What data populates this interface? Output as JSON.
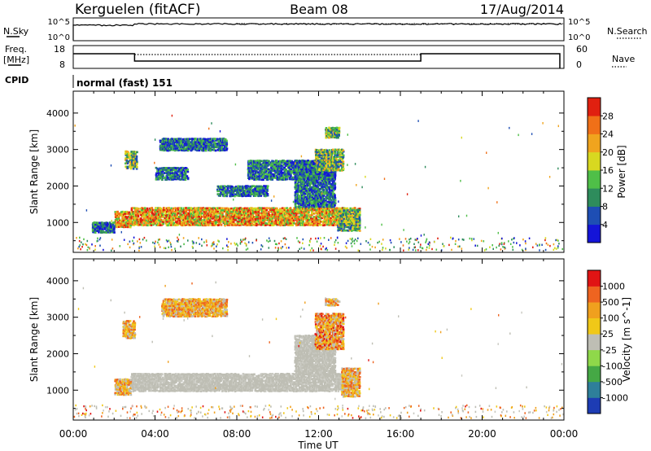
{
  "header": {
    "station": "Kerguelen (fitACF)",
    "beam": "Beam 08",
    "date": "17/Aug/2014"
  },
  "strip_labels": {
    "nsky": "N.Sky",
    "nsky_top": "10^5",
    "nsky_bottom": "10^0",
    "nsearch": "N.Search",
    "nsearch_top": "10^5",
    "nsearch_bottom": "10^0",
    "freq": "Freq.",
    "freq_unit": "[MHz]",
    "freq_top": "18",
    "freq_bottom": "8",
    "nave": "Nave",
    "nave_top": "60",
    "nave_bottom": "0",
    "cpid": "CPID",
    "cpid_value": "normal (fast) 151"
  },
  "chart_data": [
    {
      "type": "heatmap",
      "name": "power",
      "xlabel": "",
      "ylabel": "Slant Range [km]",
      "xlim": [
        0,
        24
      ],
      "ylim": [
        180,
        4600
      ],
      "yticks": [
        "1000",
        "2000",
        "3000",
        "4000"
      ],
      "colorbar": {
        "label": "Power [dB]",
        "ticks": [
          "4",
          "8",
          "12",
          "16",
          "20",
          "24",
          "28"
        ],
        "colors": [
          "#1414d8",
          "#1e4eb4",
          "#2e8c5c",
          "#4fbf48",
          "#d8d820",
          "#f0a41e",
          "#f07018",
          "#e02010"
        ]
      },
      "regions": [
        {
          "t": [
            2.0,
            2.8
          ],
          "r": [
            850,
            1300
          ],
          "level": "high"
        },
        {
          "t": [
            2.8,
            14.0
          ],
          "r": [
            900,
            1400
          ],
          "level": "high"
        },
        {
          "t": [
            12.9,
            14.0
          ],
          "r": [
            750,
            1350
          ],
          "level": "mid"
        },
        {
          "t": [
            2.5,
            3.1
          ],
          "r": [
            2450,
            2950
          ],
          "level": "mid"
        },
        {
          "t": [
            4.0,
            5.6
          ],
          "r": [
            2150,
            2500
          ],
          "level": "low"
        },
        {
          "t": [
            4.2,
            7.5
          ],
          "r": [
            2950,
            3300
          ],
          "level": "low"
        },
        {
          "t": [
            7.0,
            9.5
          ],
          "r": [
            1700,
            2000
          ],
          "level": "low"
        },
        {
          "t": [
            8.5,
            12.8
          ],
          "r": [
            2150,
            2700
          ],
          "level": "low"
        },
        {
          "t": [
            10.8,
            12.8
          ],
          "r": [
            1400,
            2700
          ],
          "level": "low"
        },
        {
          "t": [
            11.8,
            13.2
          ],
          "r": [
            2400,
            3000
          ],
          "level": "mid"
        },
        {
          "t": [
            12.3,
            13.0
          ],
          "r": [
            3300,
            3600
          ],
          "level": "mid"
        },
        {
          "t": [
            0.9,
            2.0
          ],
          "r": [
            700,
            1000
          ],
          "level": "low"
        }
      ]
    },
    {
      "type": "heatmap",
      "name": "velocity",
      "xlabel": "Time UT",
      "ylabel": "Slant Range [km]",
      "xlim": [
        0,
        24
      ],
      "ylim": [
        180,
        4600
      ],
      "xticks": [
        "00:00",
        "04:00",
        "08:00",
        "12:00",
        "16:00",
        "20:00",
        "00:00"
      ],
      "yticks": [
        "1000",
        "2000",
        "3000",
        "4000"
      ],
      "colorbar": {
        "label": "Velocity [m s^-1]",
        "ticks": [
          "1000",
          "500",
          "100",
          "25",
          "-25",
          "-100",
          "-500",
          "-1000"
        ],
        "colors": [
          "#1d3cb4",
          "#2e7f9a",
          "#45a845",
          "#8fd84a",
          "#bebeb4",
          "#f0c818",
          "#f0a01e",
          "#ee6420",
          "#e01414"
        ]
      },
      "regions": [
        {
          "t": [
            2.8,
            13.4
          ],
          "r": [
            950,
            1450
          ],
          "level": "ground"
        },
        {
          "t": [
            10.8,
            12.8
          ],
          "r": [
            1400,
            2500
          ],
          "level": "ground"
        },
        {
          "t": [
            2.0,
            2.8
          ],
          "r": [
            850,
            1300
          ],
          "level": "orange"
        },
        {
          "t": [
            13.1,
            14.0
          ],
          "r": [
            800,
            1600
          ],
          "level": "orange"
        },
        {
          "t": [
            2.4,
            3.0
          ],
          "r": [
            2400,
            2900
          ],
          "level": "orange"
        },
        {
          "t": [
            4.3,
            7.5
          ],
          "r": [
            3000,
            3500
          ],
          "level": "orange"
        },
        {
          "t": [
            11.8,
            13.2
          ],
          "r": [
            2100,
            3100
          ],
          "level": "red"
        },
        {
          "t": [
            12.3,
            13.0
          ],
          "r": [
            3300,
            3500
          ],
          "level": "orange"
        }
      ]
    }
  ]
}
